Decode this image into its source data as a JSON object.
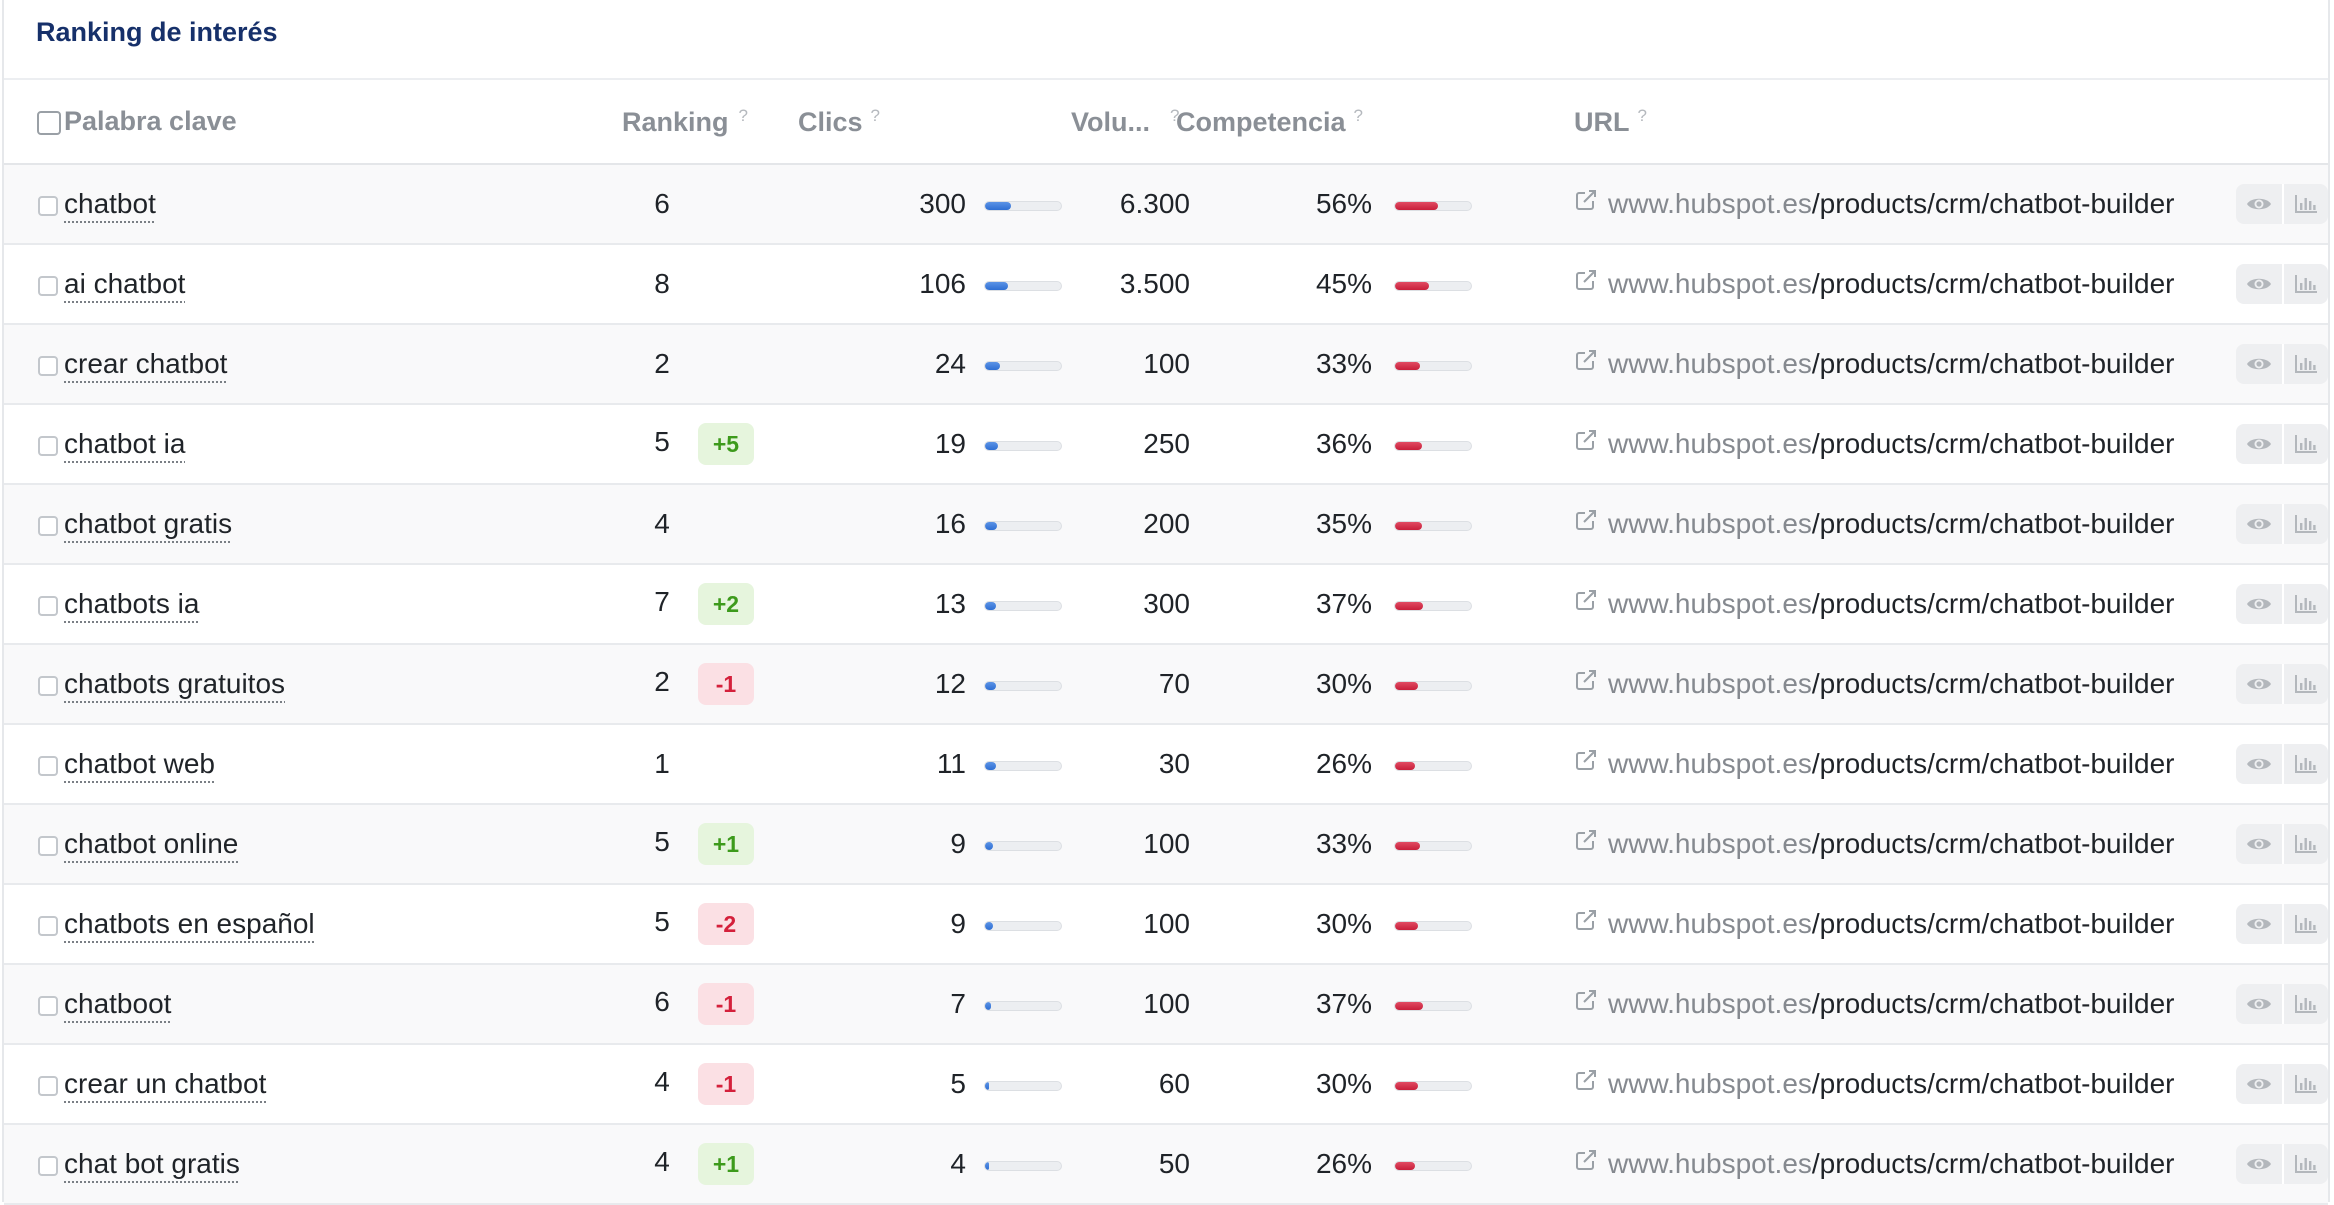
{
  "panel": {
    "title": "Ranking de interés"
  },
  "columns": {
    "keyword": "Palabra clave",
    "ranking": "Ranking",
    "clics": "Clics",
    "volume": "Volu...",
    "competition": "Competencia",
    "url": "URL",
    "help": "?"
  },
  "colors": {
    "title": "#16306a",
    "clics_bar": "#2f6fd3",
    "competition_bar": "#c81f3b",
    "badge_up": "#3d9a1c",
    "badge_down": "#d4203b"
  },
  "icons": {
    "external_link": "external-link-icon",
    "view": "eye-icon",
    "chart": "bar-chart-icon"
  },
  "rows": [
    {
      "keyword": "chatbot",
      "ranking": "6",
      "change": "",
      "clics": "300",
      "clics_share": 0.34,
      "volume": "6.300",
      "competition": "56%",
      "domain": "www.hubspot.es",
      "path": "/products/crm/chatbot-builder"
    },
    {
      "keyword": "ai chatbot",
      "ranking": "8",
      "change": "",
      "clics": "106",
      "clics_share": 0.3,
      "volume": "3.500",
      "competition": "45%",
      "domain": "www.hubspot.es",
      "path": "/products/crm/chatbot-builder"
    },
    {
      "keyword": "crear chatbot",
      "ranking": "2",
      "change": "",
      "clics": "24",
      "clics_share": 0.2,
      "volume": "100",
      "competition": "33%",
      "domain": "www.hubspot.es",
      "path": "/products/crm/chatbot-builder"
    },
    {
      "keyword": "chatbot ia",
      "ranking": "5",
      "change": "+5",
      "clics": "19",
      "clics_share": 0.17,
      "volume": "250",
      "competition": "36%",
      "domain": "www.hubspot.es",
      "path": "/products/crm/chatbot-builder"
    },
    {
      "keyword": "chatbot gratis",
      "ranking": "4",
      "change": "",
      "clics": "16",
      "clics_share": 0.16,
      "volume": "200",
      "competition": "35%",
      "domain": "www.hubspot.es",
      "path": "/products/crm/chatbot-builder"
    },
    {
      "keyword": "chatbots ia",
      "ranking": "7",
      "change": "+2",
      "clics": "13",
      "clics_share": 0.15,
      "volume": "300",
      "competition": "37%",
      "domain": "www.hubspot.es",
      "path": "/products/crm/chatbot-builder"
    },
    {
      "keyword": "chatbots gratuitos",
      "ranking": "2",
      "change": "-1",
      "clics": "12",
      "clics_share": 0.15,
      "volume": "70",
      "competition": "30%",
      "domain": "www.hubspot.es",
      "path": "/products/crm/chatbot-builder"
    },
    {
      "keyword": "chatbot web",
      "ranking": "1",
      "change": "",
      "clics": "11",
      "clics_share": 0.14,
      "volume": "30",
      "competition": "26%",
      "domain": "www.hubspot.es",
      "path": "/products/crm/chatbot-builder"
    },
    {
      "keyword": "chatbot online",
      "ranking": "5",
      "change": "+1",
      "clics": "9",
      "clics_share": 0.1,
      "volume": "100",
      "competition": "33%",
      "domain": "www.hubspot.es",
      "path": "/products/crm/chatbot-builder"
    },
    {
      "keyword": "chatbots en español",
      "ranking": "5",
      "change": "-2",
      "clics": "9",
      "clics_share": 0.1,
      "volume": "100",
      "competition": "30%",
      "domain": "www.hubspot.es",
      "path": "/products/crm/chatbot-builder"
    },
    {
      "keyword": "chatboot",
      "ranking": "6",
      "change": "-1",
      "clics": "7",
      "clics_share": 0.08,
      "volume": "100",
      "competition": "37%",
      "domain": "www.hubspot.es",
      "path": "/products/crm/chatbot-builder"
    },
    {
      "keyword": "crear un chatbot",
      "ranking": "4",
      "change": "-1",
      "clics": "5",
      "clics_share": 0.05,
      "volume": "60",
      "competition": "30%",
      "domain": "www.hubspot.es",
      "path": "/products/crm/chatbot-builder"
    },
    {
      "keyword": "chat bot gratis",
      "ranking": "4",
      "change": "+1",
      "clics": "4",
      "clics_share": 0.05,
      "volume": "50",
      "competition": "26%",
      "domain": "www.hubspot.es",
      "path": "/products/crm/chatbot-builder"
    }
  ]
}
